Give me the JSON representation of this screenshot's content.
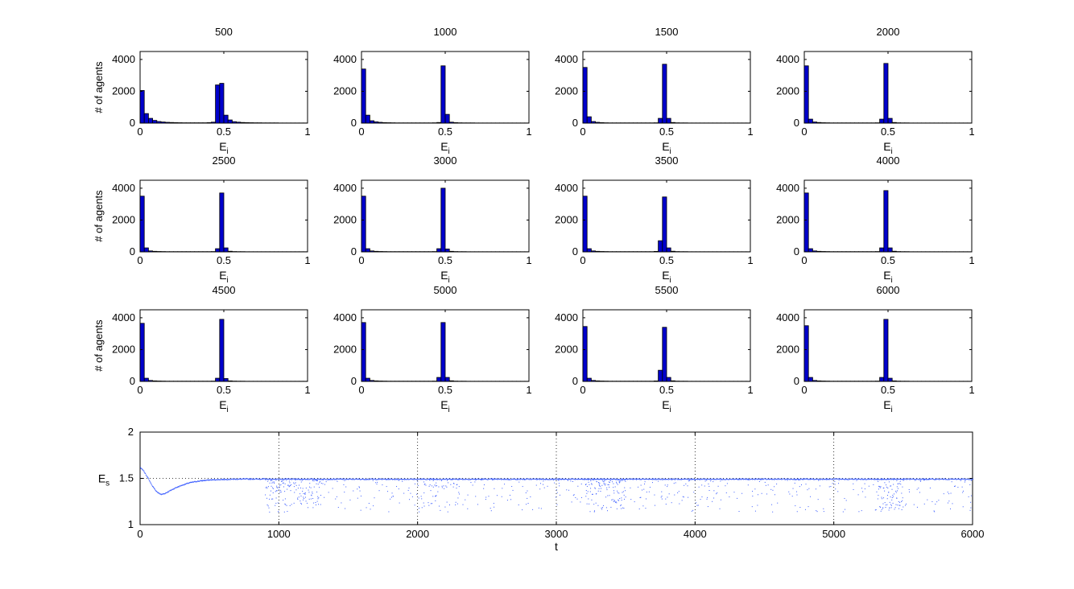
{
  "chart_data": [
    {
      "type": "bar",
      "title": "500",
      "xlabel": "E",
      "xlabel_sub": "i",
      "ylabel": "# of agents",
      "xlim": [
        0,
        1
      ],
      "ylim": [
        0,
        4500
      ],
      "xticks": [
        "0",
        "0.5",
        "1"
      ],
      "yticks": [
        "0",
        "2000",
        "4000"
      ],
      "bins": [
        0.0125,
        0.0375,
        0.0625,
        0.0875,
        0.1125,
        0.1375,
        0.1625,
        0.1875,
        0.2125,
        0.2375,
        0.2625,
        0.2875,
        0.3125,
        0.3375,
        0.3625,
        0.3875,
        0.4125,
        0.4375,
        0.4625,
        0.4875,
        0.5125,
        0.5375,
        0.5625,
        0.5875,
        0.6125,
        0.6375,
        0.6625,
        0.6875,
        0.7125,
        0.7375,
        0.7625,
        0.7875,
        0.8125,
        0.8375,
        0.8625,
        0.8875,
        0.9125,
        0.9375,
        0.9625,
        0.9875
      ],
      "values": [
        2050,
        600,
        300,
        170,
        100,
        70,
        50,
        40,
        30,
        25,
        20,
        20,
        20,
        20,
        20,
        20,
        30,
        60,
        2400,
        2500,
        500,
        200,
        90,
        60,
        40,
        30,
        25,
        20,
        20,
        15,
        15,
        15,
        15,
        10,
        10,
        10,
        10,
        10,
        10,
        10
      ]
    },
    {
      "type": "bar",
      "title": "1000",
      "xlabel": "E",
      "xlabel_sub": "i",
      "ylabel": "",
      "xlim": [
        0,
        1
      ],
      "ylim": [
        0,
        4500
      ],
      "xticks": [
        "0",
        "0.5",
        "1"
      ],
      "yticks": [
        "0",
        "2000",
        "4000"
      ],
      "bins": [
        0.0125,
        0.0375,
        0.0625,
        0.0875,
        0.1125,
        0.1375,
        0.1625,
        0.1875,
        0.2125,
        0.2375,
        0.2625,
        0.2875,
        0.3125,
        0.3375,
        0.3625,
        0.3875,
        0.4125,
        0.4375,
        0.4625,
        0.4875,
        0.5125,
        0.5375,
        0.5625,
        0.5875,
        0.6125,
        0.6375,
        0.6625,
        0.6875,
        0.7125,
        0.7375,
        0.7625,
        0.7875,
        0.8125,
        0.8375,
        0.8625,
        0.8875,
        0.9125,
        0.9375,
        0.9625,
        0.9875
      ],
      "values": [
        3400,
        500,
        150,
        80,
        50,
        30,
        25,
        20,
        15,
        15,
        15,
        15,
        15,
        15,
        15,
        15,
        15,
        20,
        40,
        3600,
        550,
        60,
        30,
        20,
        15,
        15,
        15,
        10,
        10,
        10,
        10,
        10,
        10,
        10,
        10,
        10,
        10,
        10,
        10,
        10
      ]
    },
    {
      "type": "bar",
      "title": "1500",
      "xlabel": "E",
      "xlabel_sub": "i",
      "ylabel": "",
      "xlim": [
        0,
        1
      ],
      "ylim": [
        0,
        4500
      ],
      "xticks": [
        "0",
        "0.5",
        "1"
      ],
      "yticks": [
        "0",
        "2000",
        "4000"
      ],
      "bins": [
        0.0125,
        0.0375,
        0.0625,
        0.0875,
        0.1125,
        0.1375,
        0.1625,
        0.1875,
        0.2125,
        0.2375,
        0.2625,
        0.2875,
        0.3125,
        0.3375,
        0.3625,
        0.3875,
        0.4125,
        0.4375,
        0.4625,
        0.4875,
        0.5125,
        0.5375,
        0.5625,
        0.5875,
        0.6125,
        0.6375,
        0.6625,
        0.6875,
        0.7125,
        0.7375,
        0.7625,
        0.7875,
        0.8125,
        0.8375,
        0.8625,
        0.8875,
        0.9125,
        0.9375,
        0.9625,
        0.9875
      ],
      "values": [
        3500,
        400,
        100,
        50,
        30,
        20,
        15,
        15,
        15,
        15,
        15,
        15,
        15,
        15,
        15,
        15,
        15,
        20,
        300,
        3700,
        300,
        40,
        20,
        15,
        15,
        10,
        10,
        10,
        10,
        10,
        10,
        10,
        10,
        10,
        10,
        10,
        10,
        10,
        10,
        10
      ]
    },
    {
      "type": "bar",
      "title": "2000",
      "xlabel": "E",
      "xlabel_sub": "i",
      "ylabel": "",
      "xlim": [
        0,
        1
      ],
      "ylim": [
        0,
        4500
      ],
      "xticks": [
        "0",
        "0.5",
        "1"
      ],
      "yticks": [
        "0",
        "2000",
        "4000"
      ],
      "bins": [
        0.0125,
        0.0375,
        0.0625,
        0.0875,
        0.1125,
        0.1375,
        0.1625,
        0.1875,
        0.2125,
        0.2375,
        0.2625,
        0.2875,
        0.3125,
        0.3375,
        0.3625,
        0.3875,
        0.4125,
        0.4375,
        0.4625,
        0.4875,
        0.5125,
        0.5375,
        0.5625,
        0.5875,
        0.6125,
        0.6375,
        0.6625,
        0.6875,
        0.7125,
        0.7375,
        0.7625,
        0.7875,
        0.8125,
        0.8375,
        0.8625,
        0.8875,
        0.9125,
        0.9375,
        0.9625,
        0.9875
      ],
      "values": [
        3600,
        250,
        70,
        40,
        25,
        20,
        15,
        15,
        15,
        15,
        15,
        15,
        15,
        15,
        15,
        15,
        15,
        20,
        250,
        3750,
        300,
        40,
        20,
        15,
        15,
        10,
        10,
        10,
        10,
        10,
        10,
        10,
        10,
        10,
        10,
        10,
        10,
        10,
        10,
        10
      ]
    },
    {
      "type": "bar",
      "title": "2500",
      "xlabel": "E",
      "xlabel_sub": "i",
      "ylabel": "# of agents",
      "xlim": [
        0,
        1
      ],
      "ylim": [
        0,
        4500
      ],
      "xticks": [
        "0",
        "0.5",
        "1"
      ],
      "yticks": [
        "0",
        "2000",
        "4000"
      ],
      "bins": [
        0.0125,
        0.0375,
        0.0625,
        0.0875,
        0.1125,
        0.1375,
        0.1625,
        0.1875,
        0.2125,
        0.2375,
        0.2625,
        0.2875,
        0.3125,
        0.3375,
        0.3625,
        0.3875,
        0.4125,
        0.4375,
        0.4625,
        0.4875,
        0.5125,
        0.5375,
        0.5625,
        0.5875,
        0.6125,
        0.6375,
        0.6625,
        0.6875,
        0.7125,
        0.7375,
        0.7625,
        0.7875,
        0.8125,
        0.8375,
        0.8625,
        0.8875,
        0.9125,
        0.9375,
        0.9625,
        0.9875
      ],
      "values": [
        3500,
        250,
        60,
        35,
        25,
        20,
        15,
        15,
        15,
        15,
        15,
        15,
        15,
        15,
        15,
        15,
        15,
        20,
        200,
        3700,
        250,
        40,
        20,
        15,
        15,
        10,
        10,
        10,
        10,
        10,
        10,
        10,
        10,
        10,
        10,
        10,
        10,
        10,
        10,
        10
      ]
    },
    {
      "type": "bar",
      "title": "3000",
      "xlabel": "E",
      "xlabel_sub": "i",
      "ylabel": "",
      "xlim": [
        0,
        1
      ],
      "ylim": [
        0,
        4500
      ],
      "xticks": [
        "0",
        "0.5",
        "1"
      ],
      "yticks": [
        "0",
        "2000",
        "4000"
      ],
      "bins": [
        0.0125,
        0.0375,
        0.0625,
        0.0875,
        0.1125,
        0.1375,
        0.1625,
        0.1875,
        0.2125,
        0.2375,
        0.2625,
        0.2875,
        0.3125,
        0.3375,
        0.3625,
        0.3875,
        0.4125,
        0.4375,
        0.4625,
        0.4875,
        0.5125,
        0.5375,
        0.5625,
        0.5875,
        0.6125,
        0.6375,
        0.6625,
        0.6875,
        0.7125,
        0.7375,
        0.7625,
        0.7875,
        0.8125,
        0.8375,
        0.8625,
        0.8875,
        0.9125,
        0.9375,
        0.9625,
        0.9875
      ],
      "values": [
        3500,
        200,
        60,
        35,
        25,
        20,
        15,
        15,
        15,
        15,
        15,
        15,
        15,
        15,
        15,
        15,
        15,
        20,
        200,
        4000,
        180,
        35,
        20,
        15,
        15,
        10,
        10,
        10,
        10,
        10,
        10,
        10,
        10,
        10,
        10,
        10,
        10,
        10,
        10,
        10
      ]
    },
    {
      "type": "bar",
      "title": "3500",
      "xlabel": "E",
      "xlabel_sub": "i",
      "ylabel": "",
      "xlim": [
        0,
        1
      ],
      "ylim": [
        0,
        4500
      ],
      "xticks": [
        "0",
        "0.5",
        "1"
      ],
      "yticks": [
        "0",
        "2000",
        "4000"
      ],
      "bins": [
        0.0125,
        0.0375,
        0.0625,
        0.0875,
        0.1125,
        0.1375,
        0.1625,
        0.1875,
        0.2125,
        0.2375,
        0.2625,
        0.2875,
        0.3125,
        0.3375,
        0.3625,
        0.3875,
        0.4125,
        0.4375,
        0.4625,
        0.4875,
        0.5125,
        0.5375,
        0.5625,
        0.5875,
        0.6125,
        0.6375,
        0.6625,
        0.6875,
        0.7125,
        0.7375,
        0.7625,
        0.7875,
        0.8125,
        0.8375,
        0.8625,
        0.8875,
        0.9125,
        0.9375,
        0.9625,
        0.9875
      ],
      "values": [
        3500,
        200,
        60,
        35,
        25,
        20,
        15,
        15,
        15,
        15,
        15,
        15,
        15,
        15,
        15,
        15,
        15,
        30,
        700,
        3450,
        250,
        40,
        20,
        15,
        15,
        10,
        10,
        10,
        10,
        10,
        10,
        10,
        10,
        10,
        10,
        10,
        10,
        10,
        10,
        10
      ]
    },
    {
      "type": "bar",
      "title": "4000",
      "xlabel": "E",
      "xlabel_sub": "i",
      "ylabel": "",
      "xlim": [
        0,
        1
      ],
      "ylim": [
        0,
        4500
      ],
      "xticks": [
        "0",
        "0.5",
        "1"
      ],
      "yticks": [
        "0",
        "2000",
        "4000"
      ],
      "bins": [
        0.0125,
        0.0375,
        0.0625,
        0.0875,
        0.1125,
        0.1375,
        0.1625,
        0.1875,
        0.2125,
        0.2375,
        0.2625,
        0.2875,
        0.3125,
        0.3375,
        0.3625,
        0.3875,
        0.4125,
        0.4375,
        0.4625,
        0.4875,
        0.5125,
        0.5375,
        0.5625,
        0.5875,
        0.6125,
        0.6375,
        0.6625,
        0.6875,
        0.7125,
        0.7375,
        0.7625,
        0.7875,
        0.8125,
        0.8375,
        0.8625,
        0.8875,
        0.9125,
        0.9375,
        0.9625,
        0.9875
      ],
      "values": [
        3700,
        200,
        60,
        35,
        25,
        20,
        15,
        15,
        15,
        15,
        15,
        15,
        15,
        15,
        15,
        15,
        15,
        20,
        250,
        3850,
        250,
        40,
        20,
        15,
        15,
        10,
        10,
        10,
        10,
        10,
        10,
        10,
        10,
        10,
        10,
        10,
        10,
        10,
        10,
        10
      ]
    },
    {
      "type": "bar",
      "title": "4500",
      "xlabel": "E",
      "xlabel_sub": "i",
      "ylabel": "# of agents",
      "xlim": [
        0,
        1
      ],
      "ylim": [
        0,
        4500
      ],
      "xticks": [
        "0",
        "0.5",
        "1"
      ],
      "yticks": [
        "0",
        "2000",
        "4000"
      ],
      "bins": [
        0.0125,
        0.0375,
        0.0625,
        0.0875,
        0.1125,
        0.1375,
        0.1625,
        0.1875,
        0.2125,
        0.2375,
        0.2625,
        0.2875,
        0.3125,
        0.3375,
        0.3625,
        0.3875,
        0.4125,
        0.4375,
        0.4625,
        0.4875,
        0.5125,
        0.5375,
        0.5625,
        0.5875,
        0.6125,
        0.6375,
        0.6625,
        0.6875,
        0.7125,
        0.7375,
        0.7625,
        0.7875,
        0.8125,
        0.8375,
        0.8625,
        0.8875,
        0.9125,
        0.9375,
        0.9625,
        0.9875
      ],
      "values": [
        3650,
        200,
        60,
        35,
        25,
        20,
        15,
        15,
        15,
        15,
        15,
        15,
        15,
        15,
        15,
        15,
        15,
        20,
        200,
        3900,
        180,
        35,
        20,
        15,
        15,
        10,
        10,
        10,
        10,
        10,
        10,
        10,
        10,
        10,
        10,
        10,
        10,
        10,
        10,
        10
      ]
    },
    {
      "type": "bar",
      "title": "5000",
      "xlabel": "E",
      "xlabel_sub": "i",
      "ylabel": "",
      "xlim": [
        0,
        1
      ],
      "ylim": [
        0,
        4500
      ],
      "xticks": [
        "0",
        "0.5",
        "1"
      ],
      "yticks": [
        "0",
        "2000",
        "4000"
      ],
      "bins": [
        0.0125,
        0.0375,
        0.0625,
        0.0875,
        0.1125,
        0.1375,
        0.1625,
        0.1875,
        0.2125,
        0.2375,
        0.2625,
        0.2875,
        0.3125,
        0.3375,
        0.3625,
        0.3875,
        0.4125,
        0.4375,
        0.4625,
        0.4875,
        0.5125,
        0.5375,
        0.5625,
        0.5875,
        0.6125,
        0.6375,
        0.6625,
        0.6875,
        0.7125,
        0.7375,
        0.7625,
        0.7875,
        0.8125,
        0.8375,
        0.8625,
        0.8875,
        0.9125,
        0.9375,
        0.9625,
        0.9875
      ],
      "values": [
        3700,
        200,
        60,
        35,
        25,
        20,
        15,
        15,
        15,
        15,
        15,
        15,
        15,
        15,
        15,
        15,
        15,
        20,
        250,
        3700,
        250,
        40,
        20,
        15,
        15,
        10,
        10,
        10,
        10,
        10,
        10,
        10,
        10,
        10,
        10,
        10,
        10,
        10,
        10,
        10
      ]
    },
    {
      "type": "bar",
      "title": "5500",
      "xlabel": "E",
      "xlabel_sub": "i",
      "ylabel": "",
      "xlim": [
        0,
        1
      ],
      "ylim": [
        0,
        4500
      ],
      "xticks": [
        "0",
        "0.5",
        "1"
      ],
      "yticks": [
        "0",
        "2000",
        "4000"
      ],
      "bins": [
        0.0125,
        0.0375,
        0.0625,
        0.0875,
        0.1125,
        0.1375,
        0.1625,
        0.1875,
        0.2125,
        0.2375,
        0.2625,
        0.2875,
        0.3125,
        0.3375,
        0.3625,
        0.3875,
        0.4125,
        0.4375,
        0.4625,
        0.4875,
        0.5125,
        0.5375,
        0.5625,
        0.5875,
        0.6125,
        0.6375,
        0.6625,
        0.6875,
        0.7125,
        0.7375,
        0.7625,
        0.7875,
        0.8125,
        0.8375,
        0.8625,
        0.8875,
        0.9125,
        0.9375,
        0.9625,
        0.9875
      ],
      "values": [
        3450,
        200,
        60,
        35,
        25,
        20,
        15,
        15,
        15,
        15,
        15,
        15,
        15,
        15,
        15,
        15,
        15,
        30,
        700,
        3400,
        250,
        40,
        20,
        15,
        15,
        10,
        10,
        10,
        10,
        10,
        10,
        10,
        10,
        10,
        10,
        10,
        10,
        10,
        10,
        10
      ]
    },
    {
      "type": "bar",
      "title": "6000",
      "xlabel": "E",
      "xlabel_sub": "i",
      "ylabel": "",
      "xlim": [
        0,
        1
      ],
      "ylim": [
        0,
        4500
      ],
      "xticks": [
        "0",
        "0.5",
        "1"
      ],
      "yticks": [
        "0",
        "2000",
        "4000"
      ],
      "bins": [
        0.0125,
        0.0375,
        0.0625,
        0.0875,
        0.1125,
        0.1375,
        0.1625,
        0.1875,
        0.2125,
        0.2375,
        0.2625,
        0.2875,
        0.3125,
        0.3375,
        0.3625,
        0.3875,
        0.4125,
        0.4375,
        0.4625,
        0.4875,
        0.5125,
        0.5375,
        0.5625,
        0.5875,
        0.6125,
        0.6375,
        0.6625,
        0.6875,
        0.7125,
        0.7375,
        0.7625,
        0.7875,
        0.8125,
        0.8375,
        0.8625,
        0.8875,
        0.9125,
        0.9375,
        0.9625,
        0.9875
      ],
      "values": [
        3500,
        250,
        60,
        35,
        25,
        20,
        15,
        15,
        15,
        15,
        15,
        15,
        15,
        15,
        15,
        15,
        15,
        20,
        250,
        3900,
        200,
        35,
        20,
        15,
        15,
        10,
        10,
        10,
        10,
        10,
        10,
        10,
        10,
        10,
        10,
        10,
        10,
        10,
        10,
        10
      ]
    },
    {
      "type": "scatter",
      "title": "",
      "xlabel": "t",
      "ylabel": "E",
      "ylabel_sub": "s",
      "xlim": [
        0,
        6000
      ],
      "ylim": [
        1,
        2
      ],
      "xticks": [
        "0",
        "1000",
        "2000",
        "3000",
        "4000",
        "5000",
        "6000"
      ],
      "yticks": [
        "1",
        "1.5",
        "2"
      ],
      "grid": "dotted",
      "series": [
        {
          "color": "#3a5cff",
          "trend": {
            "x": [
              0,
              25,
              50,
              75,
              100,
              125,
              150,
              175,
              200,
              250,
              300,
              350,
              400,
              450,
              500,
              600,
              700,
              800,
              900
            ],
            "y": [
              1.62,
              1.58,
              1.52,
              1.45,
              1.39,
              1.35,
              1.33,
              1.34,
              1.36,
              1.4,
              1.43,
              1.455,
              1.47,
              1.48,
              1.487,
              1.493,
              1.496,
              1.497,
              1.497
            ]
          },
          "steady": 1.495,
          "spread": {
            "x_start": 900,
            "x_end": 6000,
            "y_low": 1.1,
            "y_high": 1.5
          }
        }
      ]
    }
  ]
}
